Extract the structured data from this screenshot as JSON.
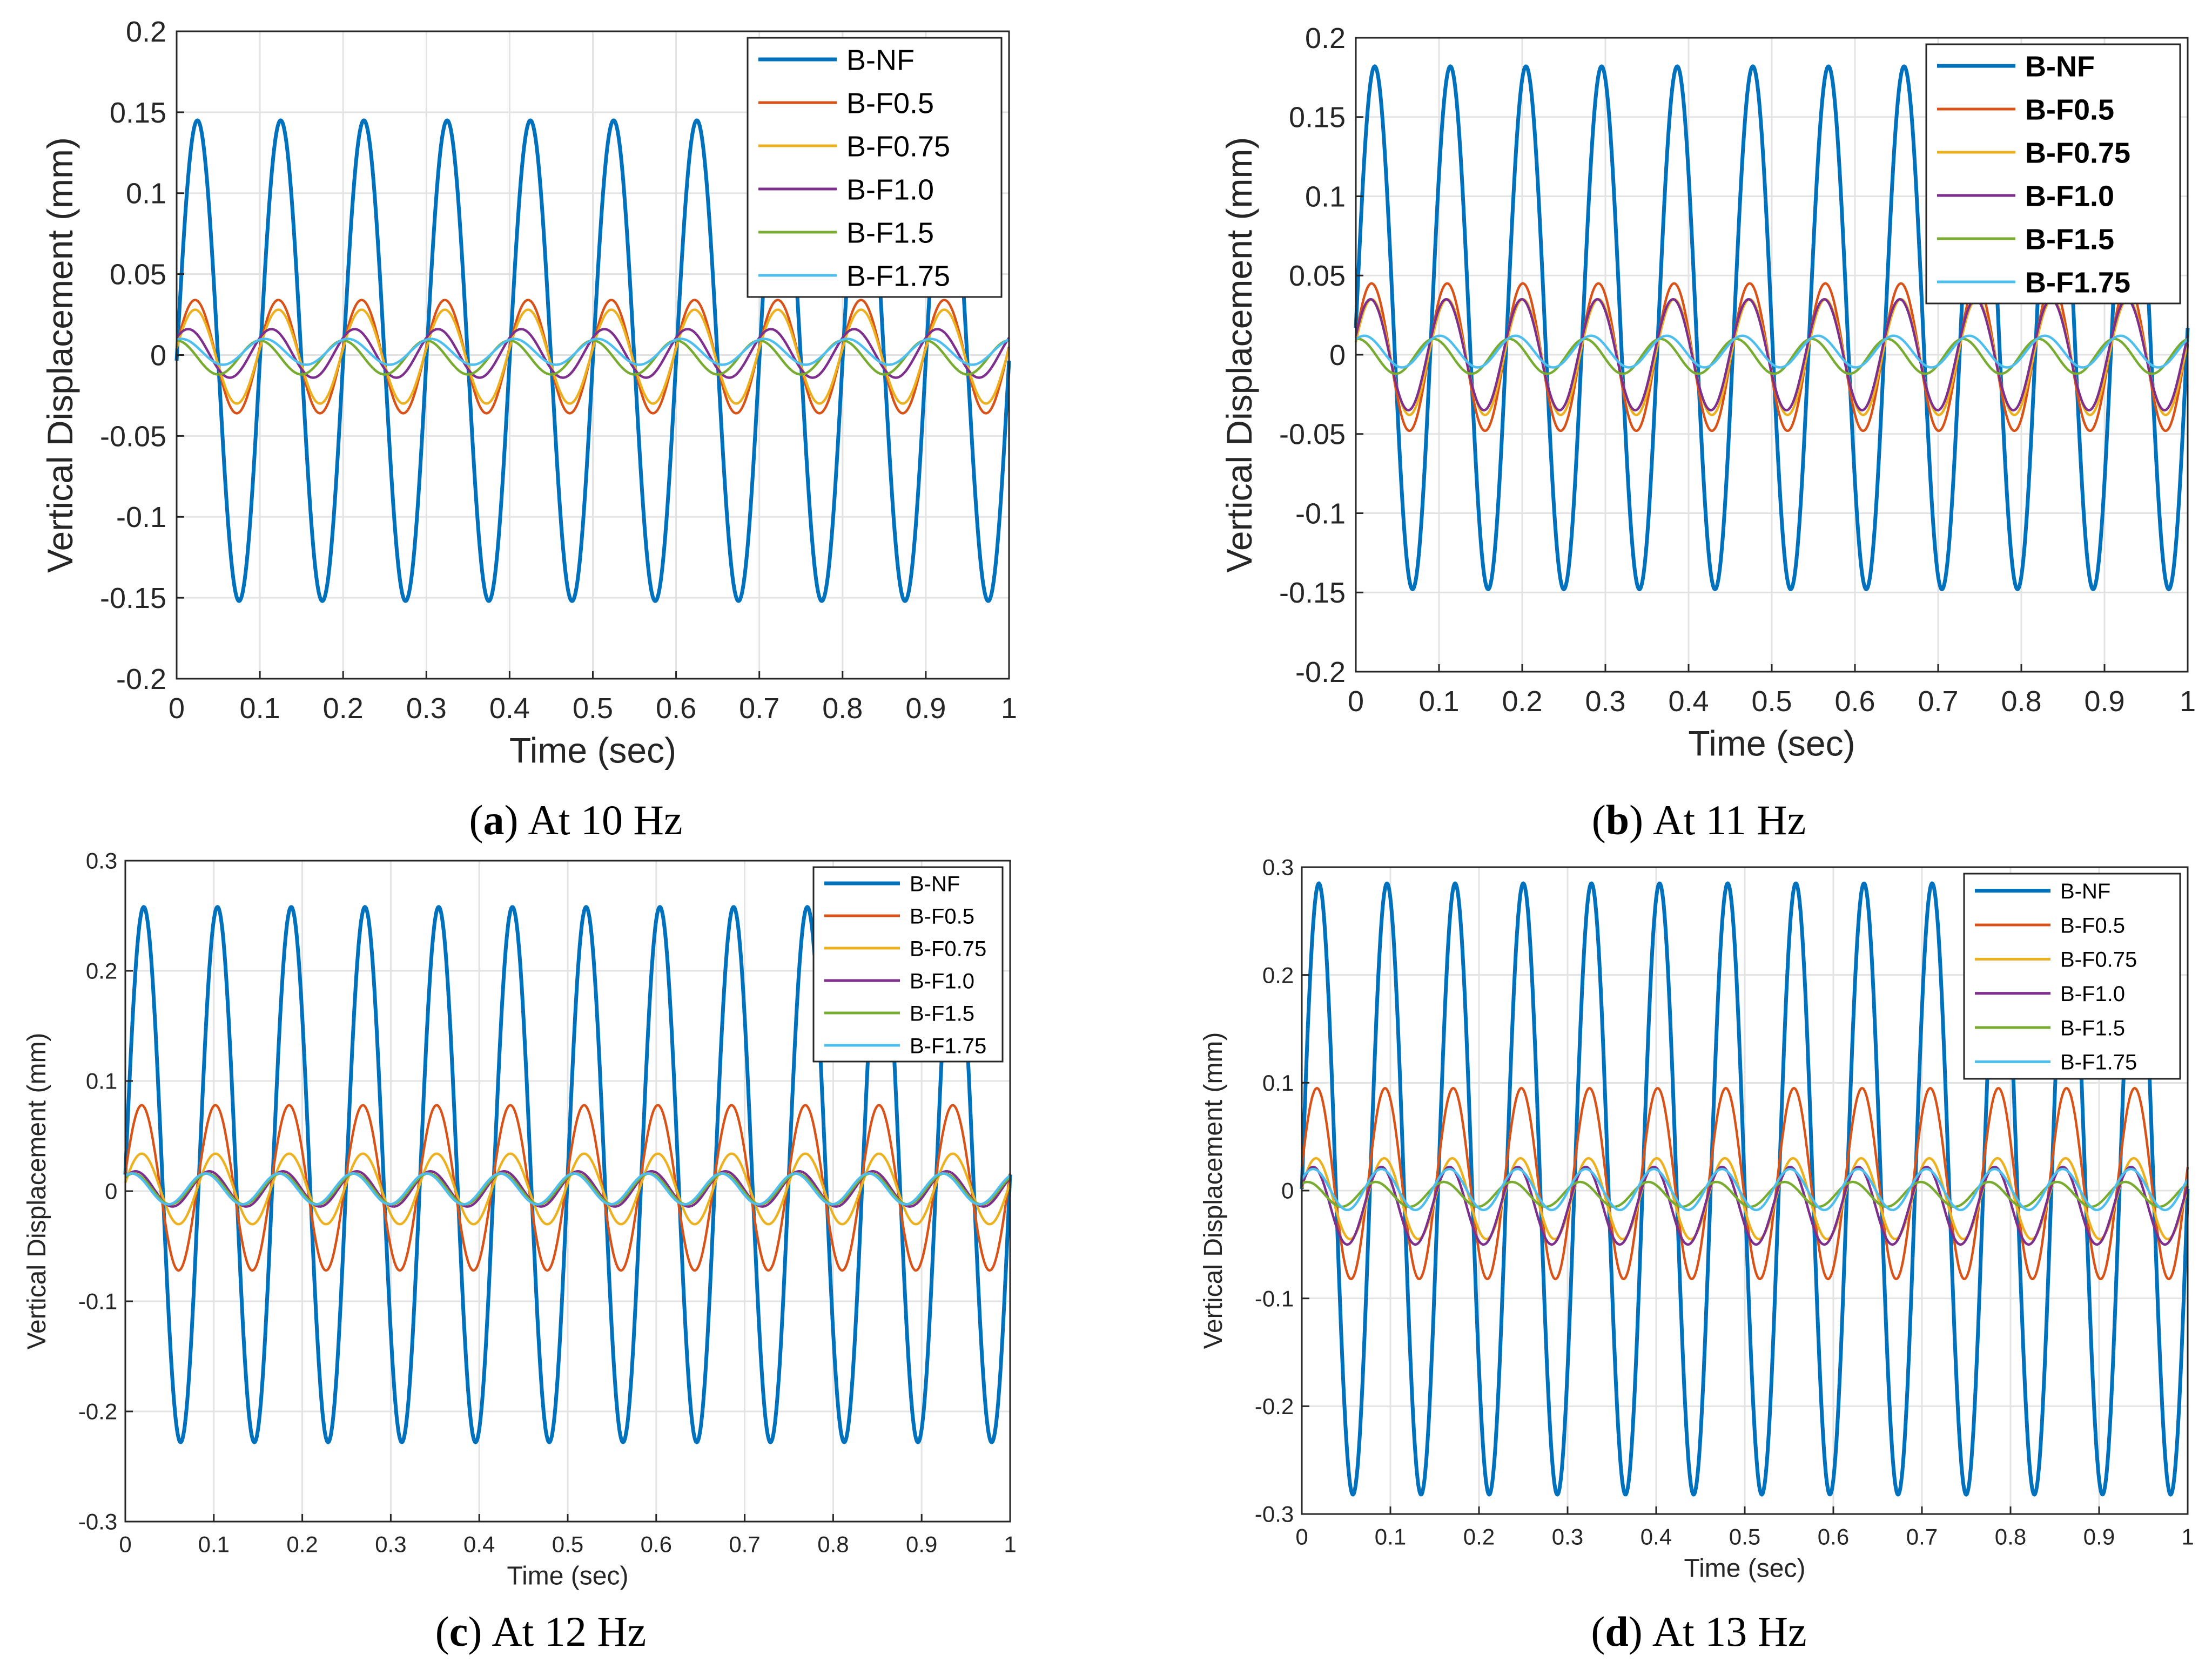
{
  "chart_data": [
    {
      "type": "line",
      "id": "a",
      "caption_letter": "a",
      "caption_text": "At 10 Hz",
      "caption_open": "(",
      "caption_close": ")",
      "xlabel": "Time (sec)",
      "ylabel": "Vertical Displacement (mm)",
      "xlim": [
        0,
        1
      ],
      "ylim": [
        -0.2,
        0.2
      ],
      "xticks": [
        0,
        0.1,
        0.2,
        0.3,
        0.4,
        0.5,
        0.6,
        0.7,
        0.8,
        0.9,
        1
      ],
      "xtick_labels": [
        "0",
        "0.1",
        "0.2",
        "0.3",
        "0.4",
        "0.5",
        "0.6",
        "0.7",
        "0.8",
        "0.9",
        "1"
      ],
      "yticks": [
        -0.2,
        -0.15,
        -0.1,
        -0.05,
        0,
        0.05,
        0.1,
        0.15,
        0.2
      ],
      "ytick_labels": [
        "-0.2",
        "-0.15",
        "-0.1",
        "-0.05",
        "0",
        "0.05",
        "0.1",
        "0.15",
        "0.2"
      ],
      "grid": true,
      "legend_position": "top-right",
      "bold_legend": false,
      "series": [
        {
          "name": "B-NF",
          "color": "#0072BD",
          "frequency_hz": 10,
          "peak": 0.145,
          "trough": -0.152,
          "phase_deg": 0
        },
        {
          "name": "B-F0.5",
          "color": "#D95319",
          "frequency_hz": 10,
          "peak": 0.034,
          "trough": -0.036,
          "phase_deg": 10
        },
        {
          "name": "B-F0.75",
          "color": "#EDB120",
          "frequency_hz": 10,
          "peak": 0.028,
          "trough": -0.03,
          "phase_deg": 10
        },
        {
          "name": "B-F1.0",
          "color": "#7E2F8E",
          "frequency_hz": 10,
          "peak": 0.016,
          "trough": -0.014,
          "phase_deg": 40
        },
        {
          "name": "B-F1.5",
          "color": "#77AC30",
          "frequency_hz": 10,
          "peak": 0.009,
          "trough": -0.012,
          "phase_deg": 90
        },
        {
          "name": "B-F1.75",
          "color": "#4DBEEE",
          "frequency_hz": 10,
          "peak": 0.01,
          "trough": -0.006,
          "phase_deg": 70
        }
      ]
    },
    {
      "type": "line",
      "id": "b",
      "caption_letter": "b",
      "caption_text": "At 11 Hz",
      "caption_open": "(",
      "caption_close": ")",
      "xlabel": "Time (sec)",
      "ylabel": "Vertical Displacement (mm)",
      "xlim": [
        0,
        1
      ],
      "ylim": [
        -0.2,
        0.2
      ],
      "xticks": [
        0,
        0.1,
        0.2,
        0.3,
        0.4,
        0.5,
        0.6,
        0.7,
        0.8,
        0.9,
        1
      ],
      "xtick_labels": [
        "0",
        "0.1",
        "0.2",
        "0.3",
        "0.4",
        "0.5",
        "0.6",
        "0.7",
        "0.8",
        "0.9",
        "1"
      ],
      "yticks": [
        -0.2,
        -0.15,
        -0.1,
        -0.05,
        0,
        0.05,
        0.1,
        0.15,
        0.2
      ],
      "ytick_labels": [
        "-0.2",
        "-0.15",
        "-0.1",
        "-0.05",
        "0",
        "0.05",
        "0.1",
        "0.15",
        "0.2"
      ],
      "grid": true,
      "legend_position": "top-right",
      "bold_legend": true,
      "series": [
        {
          "name": "B-NF",
          "color": "#0072BD",
          "frequency_hz": 11,
          "peak": 0.182,
          "trough": -0.148,
          "phase_deg": 0
        },
        {
          "name": "B-F0.5",
          "color": "#D95319",
          "frequency_hz": 11,
          "peak": 0.045,
          "trough": -0.048,
          "phase_deg": 15
        },
        {
          "name": "B-F0.75",
          "color": "#EDB120",
          "frequency_hz": 11,
          "peak": 0.035,
          "trough": -0.038,
          "phase_deg": 15
        },
        {
          "name": "B-F1.0",
          "color": "#7E2F8E",
          "frequency_hz": 11,
          "peak": 0.035,
          "trough": -0.035,
          "phase_deg": 20
        },
        {
          "name": "B-F1.5",
          "color": "#77AC30",
          "frequency_hz": 11,
          "peak": 0.01,
          "trough": -0.012,
          "phase_deg": 80
        },
        {
          "name": "B-F1.75",
          "color": "#4DBEEE",
          "frequency_hz": 11,
          "peak": 0.012,
          "trough": -0.008,
          "phase_deg": 50
        }
      ]
    },
    {
      "type": "line",
      "id": "c",
      "caption_letter": "c",
      "caption_text": "At 12 Hz",
      "caption_open": "(",
      "caption_close": ")",
      "xlabel": "Time (sec)",
      "ylabel": "Vertical Displacement (mm)",
      "xlim": [
        0,
        1
      ],
      "ylim": [
        -0.3,
        0.3
      ],
      "xticks": [
        0,
        0.1,
        0.2,
        0.3,
        0.4,
        0.5,
        0.6,
        0.7,
        0.8,
        0.9,
        1
      ],
      "xtick_labels": [
        "0",
        "0.1",
        "0.2",
        "0.3",
        "0.4",
        "0.5",
        "0.6",
        "0.7",
        "0.8",
        "0.9",
        "1"
      ],
      "yticks": [
        -0.3,
        -0.2,
        -0.1,
        0,
        0.1,
        0.2,
        0.3
      ],
      "ytick_labels": [
        "-0.3",
        "-0.2",
        "-0.1",
        "0",
        "0.1",
        "0.2",
        "0.3"
      ],
      "grid": true,
      "legend_position": "top-right",
      "bold_legend": false,
      "series": [
        {
          "name": "B-NF",
          "color": "#0072BD",
          "frequency_hz": 12,
          "peak": 0.258,
          "trough": -0.228,
          "phase_deg": 0
        },
        {
          "name": "B-F0.5",
          "color": "#D95319",
          "frequency_hz": 12,
          "peak": 0.078,
          "trough": -0.072,
          "phase_deg": 10
        },
        {
          "name": "B-F0.75",
          "color": "#EDB120",
          "frequency_hz": 12,
          "peak": 0.034,
          "trough": -0.03,
          "phase_deg": 10
        },
        {
          "name": "B-F1.0",
          "color": "#7E2F8E",
          "frequency_hz": 12,
          "peak": 0.018,
          "trough": -0.014,
          "phase_deg": 40
        },
        {
          "name": "B-F1.5",
          "color": "#77AC30",
          "frequency_hz": 12,
          "peak": 0.016,
          "trough": -0.012,
          "phase_deg": 50
        },
        {
          "name": "B-F1.75",
          "color": "#4DBEEE",
          "frequency_hz": 12,
          "peak": 0.016,
          "trough": -0.012,
          "phase_deg": 60
        }
      ]
    },
    {
      "type": "line",
      "id": "d",
      "caption_letter": "d",
      "caption_text": "At 13 Hz",
      "caption_open": "(",
      "caption_close": ")",
      "xlabel": "Time (sec)",
      "ylabel": "Vertical Displacement (mm)",
      "xlim": [
        0,
        1
      ],
      "ylim": [
        -0.3,
        0.3
      ],
      "xticks": [
        0,
        0.1,
        0.2,
        0.3,
        0.4,
        0.5,
        0.6,
        0.7,
        0.8,
        0.9,
        1
      ],
      "xtick_labels": [
        "0",
        "0.1",
        "0.2",
        "0.3",
        "0.4",
        "0.5",
        "0.6",
        "0.7",
        "0.8",
        "0.9",
        "1"
      ],
      "yticks": [
        -0.3,
        -0.2,
        -0.1,
        0,
        0.1,
        0.2,
        0.3
      ],
      "ytick_labels": [
        "-0.3",
        "-0.2",
        "-0.1",
        "0",
        "0.1",
        "0.2",
        "0.3"
      ],
      "grid": true,
      "legend_position": "top-right",
      "bold_legend": false,
      "series": [
        {
          "name": "B-NF",
          "color": "#0072BD",
          "frequency_hz": 13,
          "peak": 0.285,
          "trough": -0.282,
          "phase_deg": 0
        },
        {
          "name": "B-F0.5",
          "color": "#D95319",
          "frequency_hz": 13,
          "peak": 0.095,
          "trough": -0.082,
          "phase_deg": 10
        },
        {
          "name": "B-F0.75",
          "color": "#EDB120",
          "frequency_hz": 13,
          "peak": 0.03,
          "trough": -0.045,
          "phase_deg": 15
        },
        {
          "name": "B-F1.0",
          "color": "#7E2F8E",
          "frequency_hz": 13,
          "peak": 0.022,
          "trough": -0.05,
          "phase_deg": 30
        },
        {
          "name": "B-F1.5",
          "color": "#77AC30",
          "frequency_hz": 13,
          "peak": 0.008,
          "trough": -0.015,
          "phase_deg": 60
        },
        {
          "name": "B-F1.75",
          "color": "#4DBEEE",
          "frequency_hz": 13,
          "peak": 0.02,
          "trough": -0.018,
          "phase_deg": 30
        }
      ]
    }
  ]
}
